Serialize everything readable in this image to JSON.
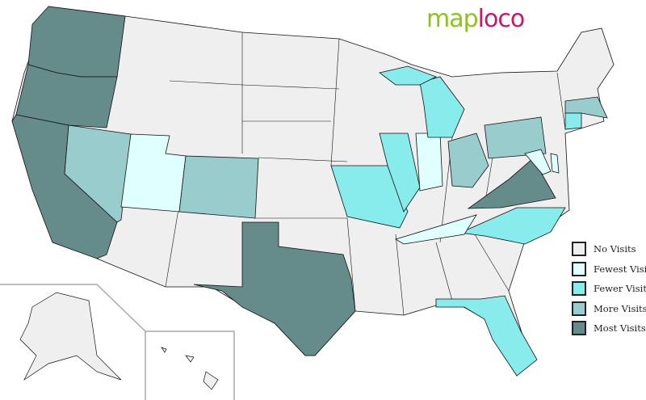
{
  "logo": {
    "part1": "map",
    "part2": "loco",
    "colors": {
      "map": "#8dc21f",
      "loco": "#c8186e"
    }
  },
  "legend": [
    {
      "key": "none",
      "label": "No Visits",
      "color": "#efefef"
    },
    {
      "key": "fewest",
      "label": "Fewest Visits",
      "color": "#e0ffff"
    },
    {
      "key": "fewer",
      "label": "Fewer Visits",
      "color": "#88ecec"
    },
    {
      "key": "more",
      "label": "More Visits",
      "color": "#99cccc"
    },
    {
      "key": "most",
      "label": "Most Visits",
      "color": "#668b8b"
    }
  ],
  "states": {
    "WA": "most",
    "OR": "most",
    "CA": "most",
    "TX": "most",
    "VA": "most",
    "NV": "more",
    "CO": "more",
    "OH": "more",
    "PA": "more",
    "MA": "more",
    "MO": "fewer",
    "IL": "fewer",
    "MI": "fewer",
    "NC": "fewer",
    "FL": "fewer",
    "CT": "fewer",
    "UT": "fewest",
    "IN": "fewest",
    "TN": "fewest",
    "MD": "fewest",
    "DE": "fewest"
  }
}
